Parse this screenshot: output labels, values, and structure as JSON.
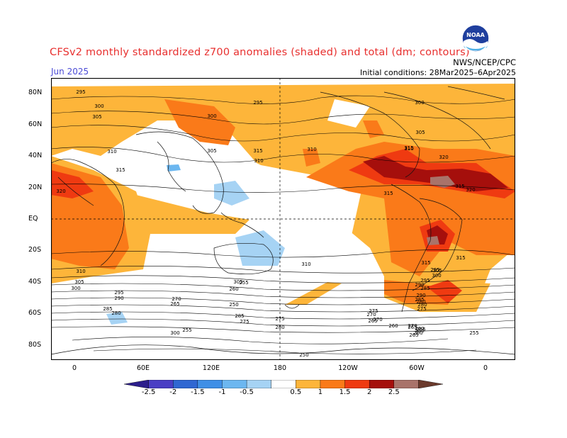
{
  "header": {
    "title": "CFSv2 monthly standardized z700 anomalies (shaded) and total (dm; contours)",
    "month": "Jun 2025",
    "agency": "NWS/NCEP/CPC",
    "initial_conditions": "Initial conditions: 28Mar2025–6Apr2025",
    "logo_text": "NOAA"
  },
  "axes": {
    "lat_labels": [
      "80N",
      "60N",
      "40N",
      "20N",
      "EQ",
      "20S",
      "40S",
      "60S",
      "80S"
    ],
    "lon_labels": [
      "0",
      "60E",
      "120E",
      "180",
      "120W",
      "60W",
      "0"
    ]
  },
  "colorbar": {
    "labels": [
      "-2.5",
      "-2",
      "-1.5",
      "-1",
      "-0.5",
      "0.5",
      "1",
      "1.5",
      "2",
      "2.5"
    ],
    "colors": [
      "#2c1e8c",
      "#4a3ec4",
      "#2f67d2",
      "#3f8fe6",
      "#6cb7f0",
      "#a6d3f4",
      "#ffffff",
      "#fdb53a",
      "#fa7a19",
      "#ef3a11",
      "#a50f0c",
      "#a9736a",
      "#6b3a2c"
    ]
  },
  "contour_labels": [
    "295",
    "300",
    "305",
    "310",
    "315",
    "320",
    "300",
    "305",
    "310",
    "315",
    "310",
    "315",
    "320",
    "315",
    "320",
    "295",
    "300",
    "305",
    "310",
    "315",
    "310",
    "305",
    "300",
    "295",
    "290",
    "285",
    "280",
    "275",
    "270",
    "265",
    "260",
    "255",
    "250",
    "285",
    "280",
    "275",
    "270",
    "265",
    "260",
    "255",
    "300",
    "305",
    "310",
    "315",
    "295",
    "290",
    "285",
    "280",
    "275",
    "270",
    "265",
    "260",
    "255",
    "250",
    "305",
    "300",
    "295",
    "290",
    "285",
    "280",
    "270",
    "275",
    "265",
    "260",
    "255",
    "250",
    "315"
  ]
}
